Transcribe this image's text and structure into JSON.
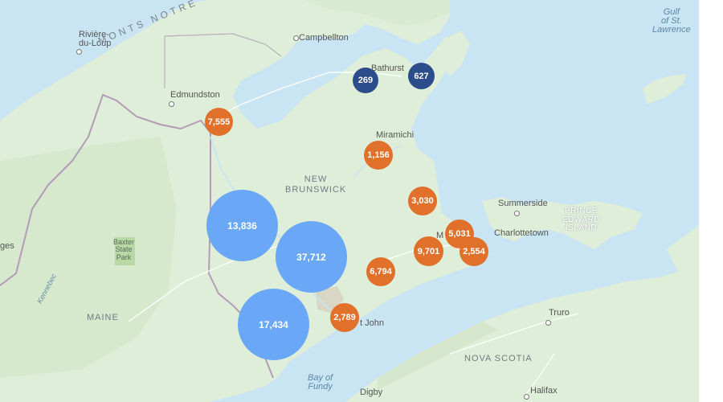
{
  "map": {
    "places": {
      "riviere_du_loup": "Rivière-\ndu-Loup",
      "campbellton": "Campbellton",
      "bathurst": "Bathurst",
      "edmundston": "Edmundston",
      "miramichi": "Miramichi",
      "summerside": "Summerside",
      "charlottetown": "Charlottetown",
      "moncton_partial": "M",
      "saint_john_partial": "t John",
      "truro": "Truro",
      "digby": "Digby",
      "halifax": "Halifax",
      "left_edge_partial": "ges"
    },
    "regions": {
      "new_brunswick": "NEW\nBRUNSWICK",
      "maine": "MAINE",
      "nova_scotia": "NOVA SCOTIA",
      "pei": "PRINCE\nEDWARD\nISLAND",
      "monts_notre": "MONTS NOTRE"
    },
    "water": {
      "gulf": "Gulf\nof St.\nLawrence",
      "bay_of_fundy": "Bay of\nFundy"
    },
    "park": "Baxter\nState\nPark",
    "river": "Kennebec"
  },
  "clusters": [
    {
      "label": "269",
      "color": "navy"
    },
    {
      "label": "627",
      "color": "navy"
    },
    {
      "label": "7,555",
      "color": "orange"
    },
    {
      "label": "1,156",
      "color": "orange"
    },
    {
      "label": "3,030",
      "color": "orange"
    },
    {
      "label": "5,031",
      "color": "orange"
    },
    {
      "label": "9,701",
      "color": "orange"
    },
    {
      "label": "2,554",
      "color": "orange"
    },
    {
      "label": "6,794",
      "color": "orange"
    },
    {
      "label": "2,789",
      "color": "orange"
    },
    {
      "label": "13,836",
      "color": "blue"
    },
    {
      "label": "37,712",
      "color": "blue"
    },
    {
      "label": "17,434",
      "color": "blue"
    }
  ],
  "colors": {
    "water": "#c9e4f2",
    "land": "#dfeed8",
    "cluster_orange": "#e0702a",
    "cluster_blue": "#6aa8f7",
    "cluster_navy": "#2b4d8c"
  }
}
